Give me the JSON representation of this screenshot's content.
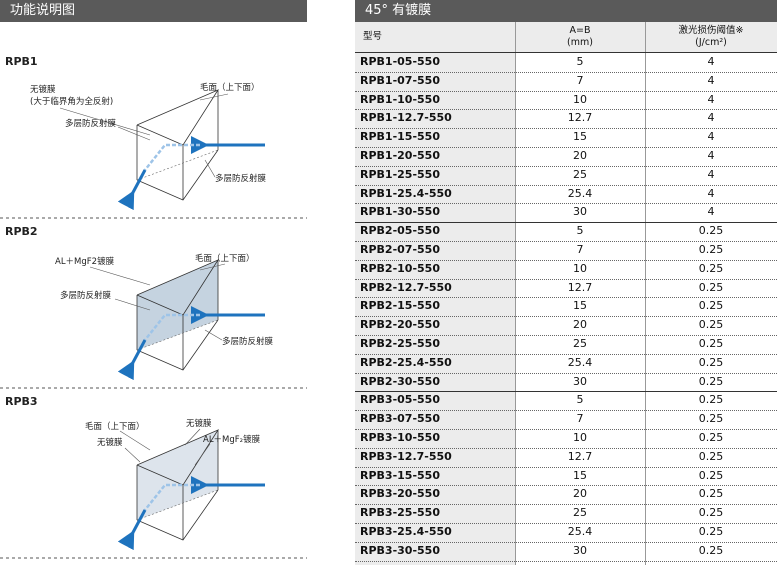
{
  "left": {
    "title": "功能说明图",
    "sections": [
      {
        "name": "RPB1",
        "labels": [
          "无镀膜",
          "(大于临界角为全反射)",
          "毛面（上下面）",
          "多层防反射膜",
          "多层防反射膜"
        ]
      },
      {
        "name": "RPB2",
        "labels": [
          "AL＋MgF2镀膜",
          "毛面（上下面）",
          "多层防反射膜",
          "多层防反射膜"
        ]
      },
      {
        "name": "RPB3",
        "labels": [
          "毛面（上下面）",
          "无镀膜",
          "无镀膜",
          "AL＋MgF₂镀膜"
        ]
      }
    ]
  },
  "right": {
    "title": "45° 有镀膜",
    "columns": [
      [
        "型号"
      ],
      [
        "A=B",
        "(mm)"
      ],
      [
        "激光损伤阈值※",
        "(J/cm²)"
      ]
    ],
    "rows": [
      [
        "RPB1-05-550",
        5,
        4
      ],
      [
        "RPB1-07-550",
        7,
        4
      ],
      [
        "RPB1-10-550",
        10,
        4
      ],
      [
        "RPB1-12.7-550",
        12.7,
        4
      ],
      [
        "RPB1-15-550",
        15,
        4
      ],
      [
        "RPB1-20-550",
        20,
        4
      ],
      [
        "RPB1-25-550",
        25,
        4
      ],
      [
        "RPB1-25.4-550",
        25.4,
        4
      ],
      [
        "RPB1-30-550",
        30,
        4
      ],
      [
        "RPB2-05-550",
        5,
        0.25
      ],
      [
        "RPB2-07-550",
        7,
        0.25
      ],
      [
        "RPB2-10-550",
        10,
        0.25
      ],
      [
        "RPB2-12.7-550",
        12.7,
        0.25
      ],
      [
        "RPB2-15-550",
        15,
        0.25
      ],
      [
        "RPB2-20-550",
        20,
        0.25
      ],
      [
        "RPB2-25-550",
        25,
        0.25
      ],
      [
        "RPB2-25.4-550",
        25.4,
        0.25
      ],
      [
        "RPB2-30-550",
        30,
        0.25
      ],
      [
        "RPB3-05-550",
        5,
        0.25
      ],
      [
        "RPB3-07-550",
        7,
        0.25
      ],
      [
        "RPB3-10-550",
        10,
        0.25
      ],
      [
        "RPB3-12.7-550",
        12.7,
        0.25
      ],
      [
        "RPB3-15-550",
        15,
        0.25
      ],
      [
        "RPB3-20-550",
        20,
        0.25
      ],
      [
        "RPB3-25-550",
        25,
        0.25
      ],
      [
        "RPB3-25.4-550",
        25.4,
        0.25
      ],
      [
        "RPB3-30-550",
        30,
        0.25
      ]
    ]
  }
}
